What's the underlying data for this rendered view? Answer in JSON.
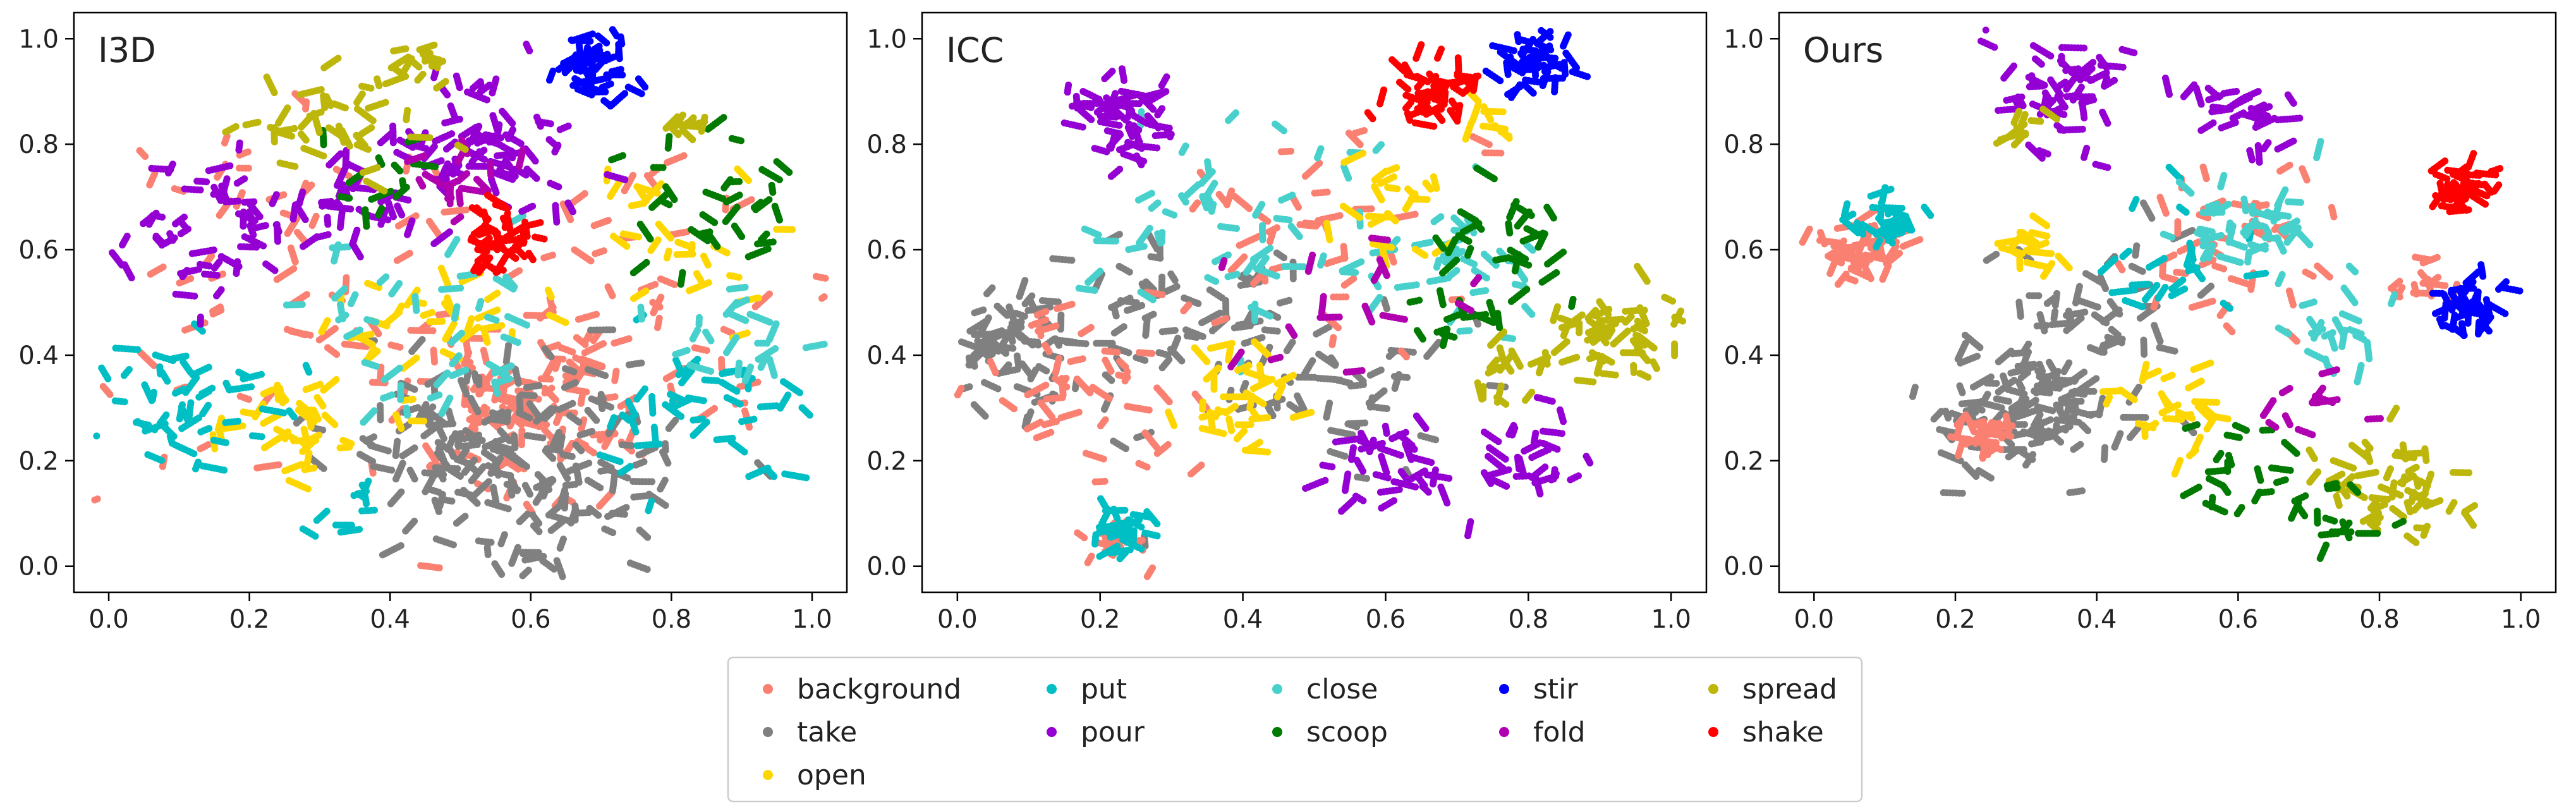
{
  "figure": {
    "chart_data": [
      {
        "type": "scatter",
        "title": "I3D",
        "xlim": [
          0.0,
          1.0
        ],
        "ylim": [
          0.0,
          1.0
        ],
        "xticks": [
          "0.0",
          "0.2",
          "0.4",
          "0.6",
          "0.8",
          "1.0"
        ],
        "yticks": [
          "0.0",
          "0.2",
          "0.4",
          "0.6",
          "0.8",
          "1.0"
        ],
        "clusters": [
          {
            "cls": "background",
            "x": 0.58,
            "y": 0.3,
            "s": 0.08,
            "n": 90
          },
          {
            "cls": "background",
            "x": 0.3,
            "y": 0.5,
            "s": 0.18,
            "n": 70
          },
          {
            "cls": "background",
            "x": 0.75,
            "y": 0.45,
            "s": 0.15,
            "n": 60
          },
          {
            "cls": "take",
            "x": 0.6,
            "y": 0.2,
            "s": 0.1,
            "n": 140
          },
          {
            "cls": "take",
            "x": 0.45,
            "y": 0.25,
            "s": 0.08,
            "n": 40
          },
          {
            "cls": "open",
            "x": 0.27,
            "y": 0.28,
            "s": 0.05,
            "n": 35
          },
          {
            "cls": "open",
            "x": 0.45,
            "y": 0.45,
            "s": 0.06,
            "n": 30
          },
          {
            "cls": "open",
            "x": 0.8,
            "y": 0.6,
            "s": 0.07,
            "n": 25
          },
          {
            "cls": "put",
            "x": 0.12,
            "y": 0.3,
            "s": 0.07,
            "n": 45
          },
          {
            "cls": "put",
            "x": 0.85,
            "y": 0.3,
            "s": 0.07,
            "n": 40
          },
          {
            "cls": "put",
            "x": 0.35,
            "y": 0.1,
            "s": 0.03,
            "n": 10
          },
          {
            "cls": "close",
            "x": 0.5,
            "y": 0.45,
            "s": 0.1,
            "n": 40
          },
          {
            "cls": "close",
            "x": 0.9,
            "y": 0.45,
            "s": 0.05,
            "n": 20
          },
          {
            "cls": "pour",
            "x": 0.55,
            "y": 0.8,
            "s": 0.06,
            "n": 70
          },
          {
            "cls": "pour",
            "x": 0.15,
            "y": 0.65,
            "s": 0.07,
            "n": 50
          },
          {
            "cls": "pour",
            "x": 0.35,
            "y": 0.7,
            "s": 0.06,
            "n": 30
          },
          {
            "cls": "scoop",
            "x": 0.85,
            "y": 0.7,
            "s": 0.07,
            "n": 30
          },
          {
            "cls": "scoop",
            "x": 0.4,
            "y": 0.75,
            "s": 0.04,
            "n": 12
          },
          {
            "cls": "stir",
            "x": 0.7,
            "y": 0.95,
            "s": 0.03,
            "n": 40
          },
          {
            "cls": "fold",
            "x": 0.5,
            "y": 0.75,
            "s": 0.04,
            "n": 15
          },
          {
            "cls": "spread",
            "x": 0.3,
            "y": 0.85,
            "s": 0.06,
            "n": 35
          },
          {
            "cls": "spread",
            "x": 0.45,
            "y": 0.96,
            "s": 0.02,
            "n": 15
          },
          {
            "cls": "spread",
            "x": 0.82,
            "y": 0.83,
            "s": 0.02,
            "n": 10
          },
          {
            "cls": "shake",
            "x": 0.55,
            "y": 0.62,
            "s": 0.03,
            "n": 40
          }
        ]
      },
      {
        "type": "scatter",
        "title": "ICC",
        "xlim": [
          0.0,
          1.0
        ],
        "ylim": [
          0.0,
          1.0
        ],
        "xticks": [
          "0.0",
          "0.2",
          "0.4",
          "0.6",
          "0.8",
          "1.0"
        ],
        "yticks": [
          "0.0",
          "0.2",
          "0.4",
          "0.6",
          "0.8",
          "1.0"
        ],
        "clusters": [
          {
            "cls": "take",
            "x": 0.08,
            "y": 0.43,
            "s": 0.05,
            "n": 60
          },
          {
            "cls": "take",
            "x": 0.3,
            "y": 0.45,
            "s": 0.1,
            "n": 60
          },
          {
            "cls": "take",
            "x": 0.55,
            "y": 0.35,
            "s": 0.1,
            "n": 40
          },
          {
            "cls": "background",
            "x": 0.2,
            "y": 0.35,
            "s": 0.07,
            "n": 40
          },
          {
            "cls": "background",
            "x": 0.22,
            "y": 0.05,
            "s": 0.02,
            "n": 15
          },
          {
            "cls": "background",
            "x": 0.5,
            "y": 0.6,
            "s": 0.1,
            "n": 40
          },
          {
            "cls": "put",
            "x": 0.23,
            "y": 0.07,
            "s": 0.02,
            "n": 25
          },
          {
            "cls": "close",
            "x": 0.4,
            "y": 0.65,
            "s": 0.1,
            "n": 50
          },
          {
            "cls": "close",
            "x": 0.7,
            "y": 0.55,
            "s": 0.06,
            "n": 30
          },
          {
            "cls": "open",
            "x": 0.4,
            "y": 0.32,
            "s": 0.05,
            "n": 30
          },
          {
            "cls": "open",
            "x": 0.6,
            "y": 0.7,
            "s": 0.05,
            "n": 20
          },
          {
            "cls": "open",
            "x": 0.75,
            "y": 0.85,
            "s": 0.02,
            "n": 8
          },
          {
            "cls": "pour",
            "x": 0.23,
            "y": 0.85,
            "s": 0.04,
            "n": 50
          },
          {
            "cls": "pour",
            "x": 0.6,
            "y": 0.2,
            "s": 0.05,
            "n": 35
          },
          {
            "cls": "pour",
            "x": 0.82,
            "y": 0.2,
            "s": 0.04,
            "n": 25
          },
          {
            "cls": "stir",
            "x": 0.82,
            "y": 0.95,
            "s": 0.03,
            "n": 40
          },
          {
            "cls": "shake",
            "x": 0.67,
            "y": 0.9,
            "s": 0.03,
            "n": 45
          },
          {
            "cls": "spread",
            "x": 0.93,
            "y": 0.45,
            "s": 0.04,
            "n": 40
          },
          {
            "cls": "spread",
            "x": 0.8,
            "y": 0.38,
            "s": 0.05,
            "n": 20
          },
          {
            "cls": "scoop",
            "x": 0.78,
            "y": 0.6,
            "s": 0.05,
            "n": 25
          },
          {
            "cls": "scoop",
            "x": 0.7,
            "y": 0.45,
            "s": 0.04,
            "n": 12
          },
          {
            "cls": "fold",
            "x": 0.55,
            "y": 0.5,
            "s": 0.08,
            "n": 15
          }
        ]
      },
      {
        "type": "scatter",
        "title": "Ours",
        "xlim": [
          0.0,
          1.0
        ],
        "ylim": [
          0.0,
          1.0
        ],
        "xticks": [
          "0.0",
          "0.2",
          "0.4",
          "0.6",
          "0.8",
          "1.0"
        ],
        "yticks": [
          "0.0",
          "0.2",
          "0.4",
          "0.6",
          "0.8",
          "1.0"
        ],
        "clusters": [
          {
            "cls": "take",
            "x": 0.3,
            "y": 0.3,
            "s": 0.06,
            "n": 110
          },
          {
            "cls": "take",
            "x": 0.4,
            "y": 0.5,
            "s": 0.07,
            "n": 40
          },
          {
            "cls": "background",
            "x": 0.07,
            "y": 0.6,
            "s": 0.03,
            "n": 40
          },
          {
            "cls": "background",
            "x": 0.24,
            "y": 0.25,
            "s": 0.02,
            "n": 25
          },
          {
            "cls": "background",
            "x": 0.85,
            "y": 0.53,
            "s": 0.02,
            "n": 12
          },
          {
            "cls": "background",
            "x": 0.6,
            "y": 0.6,
            "s": 0.07,
            "n": 40
          },
          {
            "cls": "put",
            "x": 0.1,
            "y": 0.65,
            "s": 0.025,
            "n": 30
          },
          {
            "cls": "put",
            "x": 0.5,
            "y": 0.55,
            "s": 0.05,
            "n": 20
          },
          {
            "cls": "close",
            "x": 0.6,
            "y": 0.65,
            "s": 0.05,
            "n": 40
          },
          {
            "cls": "close",
            "x": 0.75,
            "y": 0.45,
            "s": 0.04,
            "n": 20
          },
          {
            "cls": "open",
            "x": 0.3,
            "y": 0.6,
            "s": 0.02,
            "n": 15
          },
          {
            "cls": "open",
            "x": 0.5,
            "y": 0.3,
            "s": 0.05,
            "n": 25
          },
          {
            "cls": "pour",
            "x": 0.35,
            "y": 0.9,
            "s": 0.05,
            "n": 50
          },
          {
            "cls": "pour",
            "x": 0.6,
            "y": 0.85,
            "s": 0.04,
            "n": 25
          },
          {
            "cls": "stir",
            "x": 0.93,
            "y": 0.5,
            "s": 0.025,
            "n": 40
          },
          {
            "cls": "shake",
            "x": 0.92,
            "y": 0.72,
            "s": 0.02,
            "n": 35
          },
          {
            "cls": "spread",
            "x": 0.82,
            "y": 0.15,
            "s": 0.05,
            "n": 50
          },
          {
            "cls": "spread",
            "x": 0.3,
            "y": 0.83,
            "s": 0.02,
            "n": 10
          },
          {
            "cls": "scoop",
            "x": 0.6,
            "y": 0.18,
            "s": 0.04,
            "n": 20
          },
          {
            "cls": "scoop",
            "x": 0.75,
            "y": 0.1,
            "s": 0.04,
            "n": 15
          },
          {
            "cls": "fold",
            "x": 0.7,
            "y": 0.3,
            "s": 0.04,
            "n": 10
          }
        ]
      }
    ],
    "legend": {
      "position": "bottom-center",
      "columns": [
        [
          "background",
          "take",
          "open"
        ],
        [
          "put",
          "pour"
        ],
        [
          "close",
          "scoop"
        ],
        [
          "stir",
          "fold"
        ],
        [
          "spread",
          "shake"
        ]
      ]
    },
    "colors": {
      "background": "#FA8072",
      "take": "#808080",
      "open": "#FFD700",
      "put": "#00BFC4",
      "pour": "#9400D3",
      "close": "#48D1CC",
      "scoop": "#007A00",
      "stir": "#0000FF",
      "fold": "#B000B0",
      "spread": "#BDB60B",
      "shake": "#FF0000"
    }
  }
}
